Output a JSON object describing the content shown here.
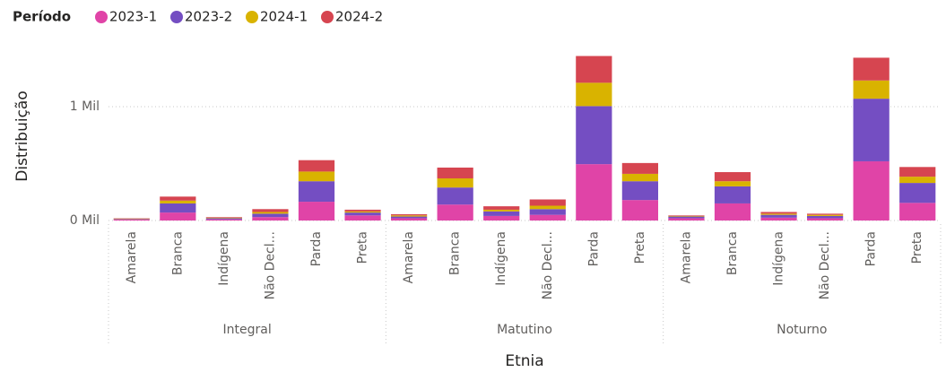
{
  "chart_data": {
    "type": "stacked_bar",
    "legend_title": "Período",
    "y_label": "Distribuição",
    "x_label": "Etnia",
    "categories": [
      "Amarela",
      "Branca",
      "Indígena",
      "Não Decl...",
      "Parda",
      "Preta",
      "Amarela",
      "Branca",
      "Indígena",
      "Não Decl...",
      "Parda",
      "Preta",
      "Amarela",
      "Branca",
      "Indígena",
      "Não Decl...",
      "Parda",
      "Preta"
    ],
    "category_groups": [
      "Integral",
      "Matutino",
      "Noturno"
    ],
    "series": [
      {
        "name": "2023-1",
        "color": "#e044a7",
        "values": [
          8,
          70,
          10,
          30,
          165,
          45,
          20,
          140,
          40,
          50,
          495,
          180,
          20,
          150,
          25,
          20,
          520,
          155
        ]
      },
      {
        "name": "2023-2",
        "color": "#744ec2",
        "values": [
          5,
          80,
          10,
          30,
          180,
          25,
          15,
          150,
          40,
          50,
          510,
          165,
          15,
          150,
          25,
          20,
          550,
          175
        ]
      },
      {
        "name": "2024-1",
        "color": "#d9b300",
        "values": [
          4,
          25,
          5,
          15,
          85,
          10,
          10,
          80,
          15,
          30,
          205,
          65,
          5,
          45,
          10,
          10,
          160,
          55
        ]
      },
      {
        "name": "2024-2",
        "color": "#d64550",
        "values": [
          3,
          35,
          5,
          25,
          100,
          15,
          10,
          95,
          30,
          55,
          235,
          95,
          5,
          80,
          15,
          10,
          200,
          85
        ]
      }
    ],
    "ylim": [
      0,
      1500
    ],
    "yticks": [
      {
        "value": 0,
        "label": "0 Mil"
      },
      {
        "value": 1000,
        "label": "1 Mil"
      }
    ],
    "grid": true
  }
}
